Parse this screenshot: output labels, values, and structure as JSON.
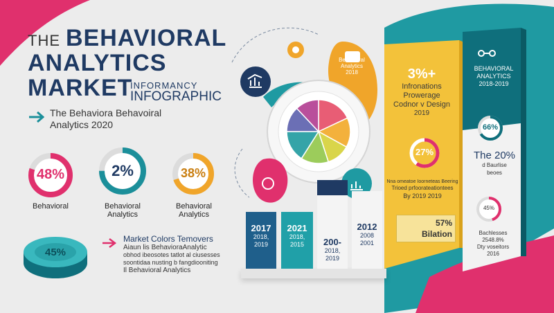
{
  "title": {
    "line1_prefix": "THE",
    "line1": "BEHAVIORAL",
    "line2": "ANALYTICS",
    "line3": "MARKET",
    "overlay_top": "INFORMANCY",
    "overlay_bottom": "INFOGRAPHIC"
  },
  "subtitle": {
    "line1": "The Behaviora Behavoiral",
    "line2": "Analytics  2020"
  },
  "rings": [
    {
      "value": "48%",
      "label": "Behavioral",
      "color": "#e0306d",
      "fill": 0.8
    },
    {
      "value": "2%",
      "label_line1": "Behavioral",
      "label_line2": "Analytics",
      "color": "#1b8f9a",
      "fill": 0.75
    },
    {
      "value": "38%",
      "label_line1": "Behavioral",
      "label_line2": "Analytics",
      "color": "#f0a52a",
      "fill": 0.7
    }
  ],
  "disk": {
    "value": "45%"
  },
  "market_text": {
    "heading": "Market Colors Temovers",
    "line1": "Aiaun lis BehavioraAnalytic",
    "line2": "obhod ibeosotes tatlot al ciusesses",
    "line3": "soontidaa nusting b fangdiooniting",
    "line4": "Il Behavioral Analytics"
  },
  "bars": [
    {
      "year": "2017",
      "sub1": "2018,",
      "sub2": "2019",
      "color": "#1f5f8b"
    },
    {
      "year": "2021",
      "sub1": "2018,",
      "sub2": "2015",
      "color": "#20a0a8"
    },
    {
      "year": "200-",
      "sub1": "2018,",
      "sub2": "2019",
      "color": "#f4f4f4"
    },
    {
      "year": "2012",
      "sub1": "2008",
      "sub2": "2001",
      "color": "#f4f4f4"
    }
  ],
  "yellow_panel": {
    "big": "3%+",
    "line1": "Infronations",
    "line2": "Prowerage",
    "line3": "Codnor v Design",
    "line4": "2019",
    "ring_value": "27%",
    "fine1": "Nna omeatoe Ioorneteas Beering",
    "fine2": "Trioed prfoorateationtees",
    "fine3": "By 2019 2019",
    "box_value": "57%",
    "box_label": "Bilation"
  },
  "teal_panel": {
    "title1": "BEHAVIORAL",
    "title2": "ANALYTICS",
    "title3": "2018-2019",
    "ring1_value": "66%",
    "pct": "The 20%",
    "pct_sub1": "d Baurlise",
    "pct_sub2": "beoes",
    "ring2_value": "45%",
    "foot1": "Bachlesses",
    "foot2": "2548.8%",
    "foot3": "Dty voseitors",
    "foot4": "2016"
  },
  "bubble_label": {
    "line1": "Behavioral",
    "line2": "Analytics",
    "line3": "2018"
  },
  "pie": {
    "slices": [
      18,
      15,
      12,
      14,
      16,
      13,
      12
    ],
    "colors": [
      "#e85d75",
      "#f3b13c",
      "#d9d54a",
      "#9ccc5b",
      "#35a4a8",
      "#6b6fb5",
      "#b94f9b"
    ]
  },
  "colors": {
    "pink": "#e0306d",
    "teal": "#1b8f9a",
    "navy": "#1f3a63",
    "yellow": "#f3c23a",
    "dark_teal": "#0f6f7c"
  }
}
